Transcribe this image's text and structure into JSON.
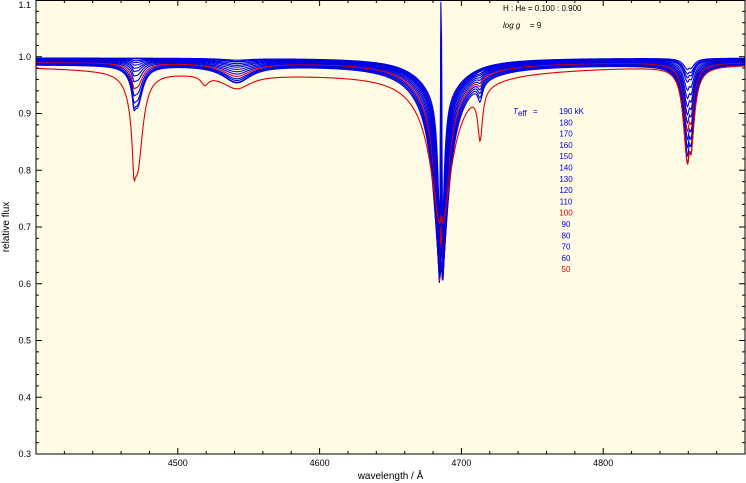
{
  "chart_data": {
    "type": "line",
    "xlabel": "wavelength / Å",
    "ylabel": "relative flux",
    "xlim": [
      4400,
      4900
    ],
    "ylim": [
      0.3,
      1.1
    ],
    "x_ticks": [
      4500,
      4600,
      4700,
      4800
    ],
    "x_tick_labels": [
      "4500",
      "4600",
      "4700",
      "4800"
    ],
    "y_ticks": [
      0.3,
      0.4,
      0.5,
      0.6,
      0.7,
      0.8,
      0.9,
      1.0,
      1.1
    ],
    "y_tick_labels": [
      "0.3",
      "0.4",
      "0.5",
      "0.6",
      "0.7",
      "0.8",
      "0.9",
      "1.0",
      "1.1"
    ],
    "grid": false,
    "background_color": "#fffbe5",
    "annotations": {
      "composition": "H : He = 0.100 : 0.900",
      "gravity_label": "log g",
      "gravity_value": "= 9"
    },
    "legend": {
      "title_main": "T",
      "title_sub": "eff",
      "title_sep": "=",
      "placement": "right-center",
      "entries": [
        {
          "label": "190 kK",
          "color": "#0000e0"
        },
        {
          "label": "180",
          "color": "#0000e0"
        },
        {
          "label": "170",
          "color": "#0000e0"
        },
        {
          "label": "160",
          "color": "#0000e0"
        },
        {
          "label": "150",
          "color": "#0000e0"
        },
        {
          "label": "140",
          "color": "#0000e0"
        },
        {
          "label": "130",
          "color": "#0000e0"
        },
        {
          "label": "120",
          "color": "#0000e0"
        },
        {
          "label": "110",
          "color": "#0000e0"
        },
        {
          "label": "100",
          "color": "#e00000"
        },
        {
          "label": "90",
          "color": "#0000e0"
        },
        {
          "label": "80",
          "color": "#0000e0"
        },
        {
          "label": "70",
          "color": "#0000e0"
        },
        {
          "label": "60",
          "color": "#0000e0"
        },
        {
          "label": "50",
          "color": "#e00000"
        }
      ]
    },
    "colors": {
      "blue": "#0000e0",
      "red": "#e00000"
    },
    "series": [
      {
        "teff": 190,
        "color": "#0000e0",
        "continuum": 0.998,
        "lines": {
          "he4471": 0.0,
          "he4541": 0.003,
          "he4686": 0.33,
          "he4686w": 2.0,
          "he4713": 0.0,
          "hb4861": 0.015
        }
      },
      {
        "teff": 180,
        "color": "#0000e0",
        "continuum": 0.997,
        "lines": {
          "he4471": 0.0,
          "he4541": 0.004,
          "he4686": 0.34,
          "he4686w": 2.2,
          "he4713": 0.0,
          "hb4861": 0.02
        }
      },
      {
        "teff": 170,
        "color": "#0000e0",
        "continuum": 0.997,
        "lines": {
          "he4471": 0.003,
          "he4541": 0.005,
          "he4686": 0.35,
          "he4686w": 2.4,
          "he4713": 0.0,
          "hb4861": 0.025
        }
      },
      {
        "teff": 160,
        "color": "#0000e0",
        "continuum": 0.996,
        "lines": {
          "he4471": 0.005,
          "he4541": 0.007,
          "he4686": 0.36,
          "he4686w": 2.6,
          "he4713": 0.0,
          "hb4861": 0.03
        }
      },
      {
        "teff": 150,
        "color": "#0000e0",
        "continuum": 0.995,
        "lines": {
          "he4471": 0.008,
          "he4541": 0.009,
          "he4686": 0.36,
          "he4686w": 2.8,
          "he4713": 0.002,
          "hb4861": 0.04
        }
      },
      {
        "teff": 140,
        "color": "#0000e0",
        "continuum": 0.994,
        "lines": {
          "he4471": 0.012,
          "he4541": 0.011,
          "he4686": 0.37,
          "he4686w": 3.0,
          "he4713": 0.003,
          "hb4861": 0.05
        }
      },
      {
        "teff": 130,
        "color": "#0000e0",
        "continuum": 0.993,
        "lines": {
          "he4471": 0.016,
          "he4541": 0.014,
          "he4686": 0.37,
          "he4686w": 3.3,
          "he4713": 0.005,
          "hb4861": 0.06
        }
      },
      {
        "teff": 120,
        "color": "#0000e0",
        "continuum": 0.992,
        "lines": {
          "he4471": 0.022,
          "he4541": 0.017,
          "he4686": 0.37,
          "he4686w": 3.6,
          "he4713": 0.007,
          "hb4861": 0.07
        }
      },
      {
        "teff": 110,
        "color": "#0000e0",
        "continuum": 0.991,
        "lines": {
          "he4471": 0.03,
          "he4541": 0.02,
          "he4686": 0.36,
          "he4686w": 4.0,
          "he4713": 0.01,
          "hb4861": 0.08
        }
      },
      {
        "teff": 100,
        "color": "#e00000",
        "continuum": 0.99,
        "lines": {
          "he4471": 0.04,
          "he4541": 0.023,
          "he4686": 0.35,
          "he4686w": 4.4,
          "he4713": 0.013,
          "hb4861": 0.09
        }
      },
      {
        "teff": 90,
        "color": "#0000e0",
        "continuum": 0.989,
        "lines": {
          "he4471": 0.05,
          "he4541": 0.026,
          "he4686": 0.34,
          "he4686w": 4.8,
          "he4713": 0.016,
          "hb4861": 0.1
        }
      },
      {
        "teff": 80,
        "color": "#0000e0",
        "continuum": 0.988,
        "lines": {
          "he4471": 0.06,
          "he4541": 0.028,
          "he4686": 0.33,
          "he4686w": 5.2,
          "he4713": 0.02,
          "hb4861": 0.11
        }
      },
      {
        "teff": 70,
        "color": "#0000e0",
        "continuum": 0.987,
        "lines": {
          "he4471": 0.067,
          "he4541": 0.03,
          "he4686": 0.32,
          "he4686w": 5.6,
          "he4713": 0.025,
          "hb4861": 0.12
        }
      },
      {
        "teff": 60,
        "color": "#0000e0",
        "continuum": 0.986,
        "lines": {
          "he4471": 0.07,
          "he4541": 0.03,
          "he4686": 0.31,
          "he4686w": 6.0,
          "he4713": 0.03,
          "hb4861": 0.13
        }
      },
      {
        "teff": 50,
        "color": "#e00000",
        "continuum": 0.985,
        "lines": {
          "he4471": 0.17,
          "he4541": 0.025,
          "he4686": 0.21,
          "he4686w": 8.0,
          "he4713": 0.085,
          "hb4861": 0.13
        }
      }
    ]
  }
}
